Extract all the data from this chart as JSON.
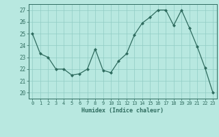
{
  "x": [
    0,
    1,
    2,
    3,
    4,
    5,
    6,
    7,
    8,
    9,
    10,
    11,
    12,
    13,
    14,
    15,
    16,
    17,
    18,
    19,
    20,
    21,
    22,
    23
  ],
  "y": [
    25.0,
    23.3,
    23.0,
    22.0,
    22.0,
    21.5,
    21.6,
    22.0,
    23.7,
    21.9,
    21.7,
    22.7,
    23.3,
    24.9,
    25.9,
    26.4,
    27.0,
    27.0,
    25.7,
    27.0,
    25.5,
    23.9,
    22.1,
    20.0
  ],
  "line_color": "#2e6b5e",
  "marker": "D",
  "marker_size": 2,
  "bg_color": "#b8e8e0",
  "grid_color": "#90ccc4",
  "xlabel": "Humidex (Indice chaleur)",
  "ylabel_ticks": [
    20,
    21,
    22,
    23,
    24,
    25,
    26,
    27
  ],
  "xlim": [
    -0.5,
    23.5
  ],
  "ylim": [
    19.5,
    27.5
  ]
}
